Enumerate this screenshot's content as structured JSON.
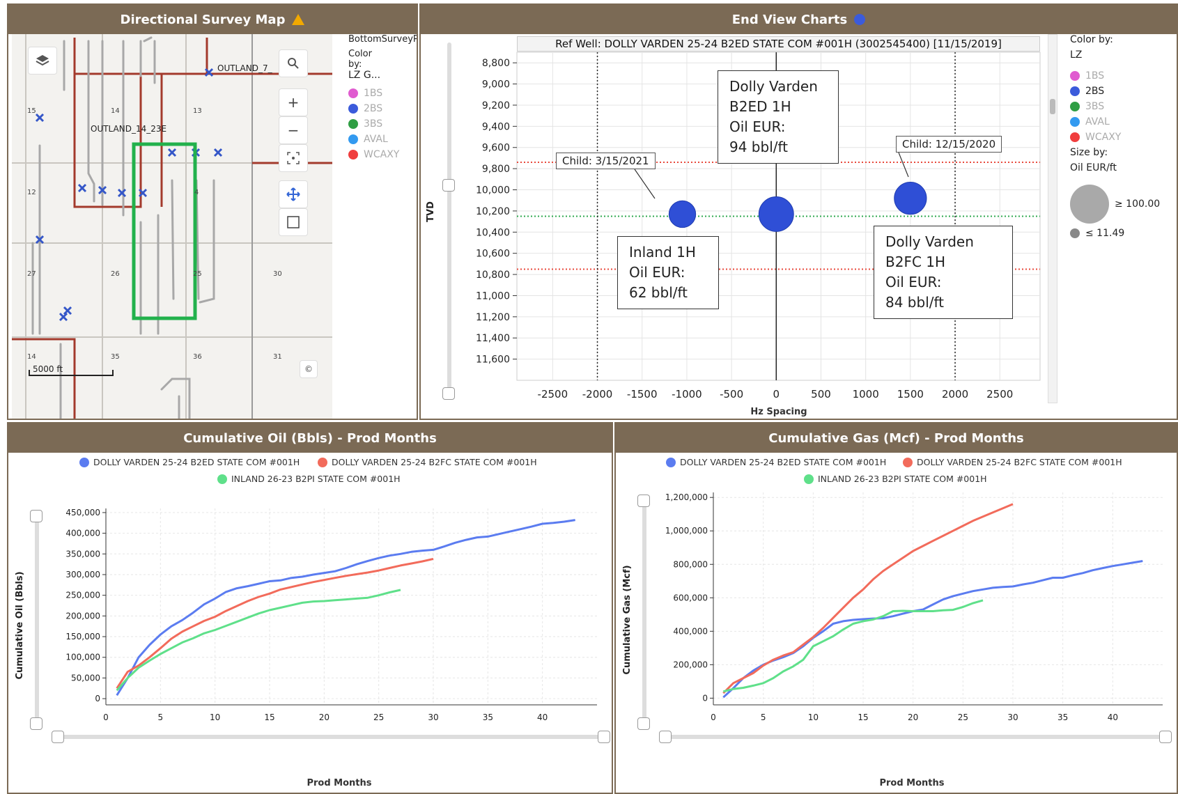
{
  "panels": {
    "map": {
      "title": "Directional Survey Map",
      "layer_title": "BottomSurveyP",
      "color_by_label": "Color\nby:",
      "color_by_value": "LZ G...",
      "legend": [
        {
          "label": "1BS",
          "color": "#e05bd0"
        },
        {
          "label": "2BS",
          "color": "#3b5bdb"
        },
        {
          "label": "3BS",
          "color": "#2f9e44"
        },
        {
          "label": "AVAL",
          "color": "#339af0"
        },
        {
          "label": "WCAXY",
          "color": "#f03e3e"
        }
      ],
      "labels": {
        "outland_7": "OUTLAND_7_",
        "outland_14": "OUTLAND_14_23E"
      },
      "section_numbers": [
        "15",
        "14",
        "13",
        "12",
        "4",
        "27",
        "26",
        "25",
        "30",
        "14",
        "35",
        "36",
        "31"
      ],
      "scale": "5000 ft",
      "buttons": {
        "zoom_in": "+",
        "zoom_out": "−"
      }
    },
    "endview": {
      "title": "End View Charts",
      "ref_well": "Ref Well: DOLLY VARDEN 25-24 B2ED STATE COM #001H (3002545400)  [11/15/2019]",
      "y_axis_label": "TVD",
      "x_axis_label": "Hz Spacing",
      "color_by_label": "Color by:",
      "color_by_value": "LZ",
      "legend": [
        {
          "label": "1BS",
          "color": "#e05bd0",
          "active": false
        },
        {
          "label": "2BS",
          "color": "#3b5bdb",
          "active": true
        },
        {
          "label": "3BS",
          "color": "#2f9e44",
          "active": false
        },
        {
          "label": "AVAL",
          "color": "#339af0",
          "active": false
        },
        {
          "label": "WCAXY",
          "color": "#f03e3e",
          "active": false
        }
      ],
      "size_by_label": "Size by:",
      "size_by_value": "Oil EUR/ft",
      "size_max_label": "≥ 100.00",
      "size_min_label": "≤ 11.49",
      "callouts": {
        "dv_b2ed": [
          "Dolly Varden",
          "B2ED 1H",
          "Oil EUR:",
          "94 bbl/ft"
        ],
        "inland": [
          "Inland 1H",
          "Oil EUR:",
          "62 bbl/ft"
        ],
        "dv_b2fc": [
          "Dolly Varden",
          "B2FC 1H",
          "Oil EUR:",
          "84 bbl/ft"
        ],
        "child1": "Child: 3/15/2021",
        "child2": "Child: 12/15/2020"
      }
    },
    "oil": {
      "title": "Cumulative Oil (Bbls) - Prod Months",
      "y_axis_label": "Cumulative Oil (Bbls)",
      "x_axis_label": "Prod Months"
    },
    "gas": {
      "title": "Cumulative Gas (Mcf) - Prod Months",
      "y_axis_label": "Cumulative Gas (Mcf)",
      "x_axis_label": "Prod Months"
    }
  },
  "series_names": {
    "b2ed": "DOLLY VARDEN 25-24 B2ED STATE COM #001H",
    "b2fc": "DOLLY VARDEN 25-24 B2FC STATE COM #001H",
    "inland": "INLAND 26-23 B2PI STATE COM #001H"
  },
  "colors": {
    "b2ed": "#5b7cf0",
    "b2fc": "#f26b5b",
    "inland": "#5fe08a",
    "panel_header": "#7b6a55",
    "bubble": "#2f4fd6"
  },
  "chart_data": [
    {
      "type": "scatter",
      "title": "End View Charts",
      "xlabel": "Hz Spacing",
      "ylabel": "TVD",
      "xlim": [
        -2900,
        2950
      ],
      "ylim": [
        11800,
        8700
      ],
      "x_ticks": [
        -2500,
        -2000,
        -1500,
        -1000,
        -500,
        0,
        500,
        1000,
        1500,
        2000,
        2500
      ],
      "y_ticks": [
        8800,
        9000,
        9200,
        9400,
        9600,
        9800,
        10000,
        10200,
        10400,
        10600,
        10800,
        11000,
        11200,
        11400,
        11600
      ],
      "points": [
        {
          "name": "Inland 1H",
          "x": -1050,
          "y": 10230,
          "oil_eur": 62
        },
        {
          "name": "Dolly Varden B2ED 1H",
          "x": 0,
          "y": 10230,
          "oil_eur": 94
        },
        {
          "name": "Dolly Varden B2FC 1H",
          "x": 1500,
          "y": 10080,
          "oil_eur": 84
        }
      ],
      "reference_lines": {
        "red_tvd": [
          9740,
          10750
        ],
        "green_tvd": 10250,
        "vertical_dotted_x": [
          -2000,
          2000
        ],
        "vertical_solid_x": 0
      }
    },
    {
      "type": "line",
      "title": "Cumulative Oil (Bbls) - Prod Months",
      "xlabel": "Prod Months",
      "ylabel": "Cumulative Oil (Bbls)",
      "xlim": [
        0,
        45
      ],
      "ylim": [
        -15000,
        460000
      ],
      "x_ticks": [
        0,
        5,
        10,
        15,
        20,
        25,
        30,
        35,
        40
      ],
      "y_ticks": [
        0,
        50000,
        100000,
        150000,
        200000,
        250000,
        300000,
        350000,
        400000,
        450000
      ],
      "series": [
        {
          "key": "b2ed",
          "name": "DOLLY VARDEN 25-24 B2ED STATE COM #001H",
          "x": [
            1,
            2,
            3,
            4,
            5,
            6,
            7,
            8,
            9,
            10,
            11,
            12,
            13,
            14,
            15,
            16,
            17,
            18,
            19,
            20,
            21,
            22,
            23,
            24,
            25,
            26,
            27,
            28,
            29,
            30,
            31,
            32,
            33,
            34,
            35,
            36,
            37,
            38,
            39,
            40,
            41,
            42,
            43
          ],
          "y": [
            8000,
            50000,
            100000,
            130000,
            155000,
            175000,
            190000,
            208000,
            228000,
            242000,
            258000,
            267000,
            272000,
            278000,
            284000,
            286000,
            292000,
            295000,
            300000,
            304000,
            308000,
            316000,
            325000,
            333000,
            340000,
            346000,
            350000,
            355000,
            358000,
            360000,
            368000,
            377000,
            384000,
            390000,
            392000,
            398000,
            404000,
            410000,
            416000,
            423000,
            425000,
            428000,
            432000
          ]
        },
        {
          "key": "b2fc",
          "name": "DOLLY VARDEN 25-24 B2FC STATE COM #001H",
          "x": [
            1,
            2,
            3,
            4,
            5,
            6,
            7,
            8,
            9,
            10,
            11,
            12,
            13,
            14,
            15,
            16,
            17,
            18,
            19,
            20,
            21,
            22,
            23,
            24,
            25,
            26,
            27,
            28,
            29,
            30
          ],
          "y": [
            25000,
            65000,
            80000,
            100000,
            122000,
            145000,
            162000,
            175000,
            188000,
            198000,
            212000,
            224000,
            236000,
            246000,
            254000,
            264000,
            270000,
            276000,
            282000,
            287000,
            292000,
            297000,
            301000,
            305000,
            310000,
            316000,
            322000,
            327000,
            332000,
            338000
          ]
        },
        {
          "key": "inland",
          "name": "INLAND 26-23 B2PI STATE COM #001H",
          "x": [
            1,
            2,
            3,
            4,
            5,
            6,
            7,
            8,
            9,
            10,
            11,
            12,
            13,
            14,
            15,
            16,
            17,
            18,
            19,
            20,
            21,
            22,
            23,
            24,
            25,
            26,
            27
          ],
          "y": [
            20000,
            50000,
            75000,
            92000,
            108000,
            122000,
            136000,
            146000,
            158000,
            166000,
            176000,
            186000,
            196000,
            206000,
            214000,
            220000,
            226000,
            232000,
            235000,
            236000,
            238000,
            240000,
            242000,
            244000,
            250000,
            257000,
            263000
          ]
        }
      ]
    },
    {
      "type": "line",
      "title": "Cumulative Gas (Mcf) - Prod Months",
      "xlabel": "Prod Months",
      "ylabel": "Cumulative Gas (Mcf)",
      "xlim": [
        0,
        45
      ],
      "ylim": [
        -40000,
        1230000
      ],
      "x_ticks": [
        0,
        5,
        10,
        15,
        20,
        25,
        30,
        35,
        40
      ],
      "y_ticks": [
        0,
        200000,
        400000,
        600000,
        800000,
        1000000,
        1200000
      ],
      "series": [
        {
          "key": "b2ed",
          "name": "DOLLY VARDEN 25-24 B2ED STATE COM #001H",
          "x": [
            1,
            2,
            3,
            4,
            5,
            6,
            7,
            8,
            9,
            10,
            11,
            12,
            13,
            14,
            15,
            16,
            17,
            18,
            19,
            20,
            21,
            22,
            23,
            24,
            25,
            26,
            27,
            28,
            29,
            30,
            31,
            32,
            33,
            34,
            35,
            36,
            37,
            38,
            39,
            40,
            41,
            42,
            43
          ],
          "y": [
            5000,
            60000,
            120000,
            165000,
            200000,
            225000,
            245000,
            270000,
            310000,
            360000,
            400000,
            445000,
            460000,
            468000,
            472000,
            476000,
            478000,
            490000,
            505000,
            520000,
            530000,
            560000,
            590000,
            610000,
            625000,
            640000,
            650000,
            660000,
            665000,
            668000,
            680000,
            690000,
            705000,
            720000,
            720000,
            735000,
            748000,
            765000,
            778000,
            790000,
            800000,
            810000,
            820000
          ]
        },
        {
          "key": "b2fc",
          "name": "DOLLY VARDEN 25-24 B2FC STATE COM #001H",
          "x": [
            1,
            2,
            3,
            4,
            5,
            6,
            7,
            8,
            9,
            10,
            11,
            12,
            13,
            14,
            15,
            16,
            17,
            18,
            19,
            20,
            21,
            22,
            23,
            24,
            25,
            26,
            27,
            28,
            29,
            30
          ],
          "y": [
            30000,
            90000,
            120000,
            150000,
            195000,
            230000,
            255000,
            275000,
            320000,
            365000,
            420000,
            480000,
            540000,
            600000,
            650000,
            710000,
            760000,
            800000,
            840000,
            880000,
            910000,
            940000,
            970000,
            1000000,
            1030000,
            1060000,
            1085000,
            1110000,
            1135000,
            1160000
          ]
        },
        {
          "key": "inland",
          "name": "INLAND 26-23 B2PI STATE COM #001H",
          "x": [
            1,
            2,
            3,
            4,
            5,
            6,
            7,
            8,
            9,
            10,
            11,
            12,
            13,
            14,
            15,
            16,
            17,
            18,
            19,
            20,
            21,
            22,
            23,
            24,
            25,
            26,
            27
          ],
          "y": [
            40000,
            55000,
            62000,
            75000,
            90000,
            120000,
            160000,
            190000,
            230000,
            310000,
            340000,
            370000,
            410000,
            445000,
            460000,
            470000,
            490000,
            520000,
            522000,
            520000,
            520000,
            520000,
            525000,
            528000,
            545000,
            568000,
            585000
          ]
        }
      ]
    }
  ]
}
